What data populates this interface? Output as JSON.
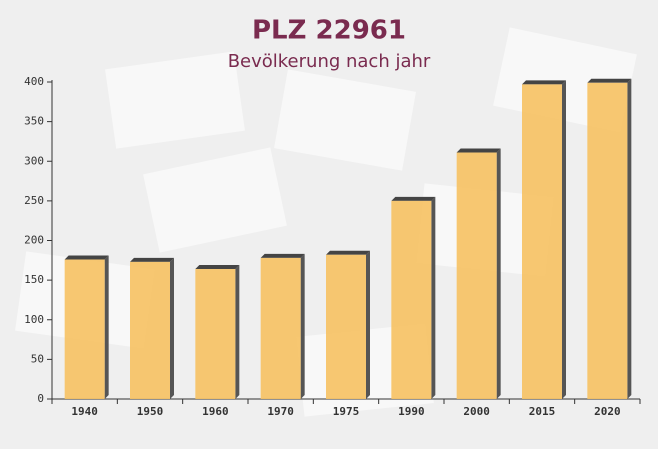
{
  "chart_data": {
    "type": "bar",
    "title": "PLZ 22961",
    "subtitle": "Bevölkerung nach jahr",
    "categories": [
      "1940",
      "1950",
      "1960",
      "1970",
      "1975",
      "1990",
      "2000",
      "2015",
      "2020"
    ],
    "values": [
      176,
      173,
      164,
      178,
      182,
      250,
      311,
      397,
      399
    ],
    "color": "#f6c265",
    "ylim": [
      0,
      400
    ],
    "yticks": [
      0,
      50,
      100,
      150,
      200,
      250,
      300,
      350,
      400
    ],
    "grid": false
  }
}
